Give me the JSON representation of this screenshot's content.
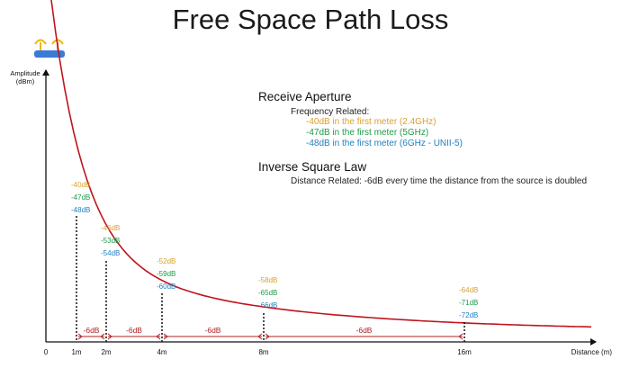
{
  "colors": {
    "curve": "#c0141c",
    "band_2_4ghz": "#d9a030",
    "band_5ghz": "#1e9a4a",
    "band_6ghz": "#1f7fbf",
    "step_label": "#b02020",
    "axis": "#111111",
    "router": "#3a7bd5",
    "antenna": "#f0b400"
  },
  "header": {
    "title": "Free Space Path Loss"
  },
  "icons": {
    "router": "router-icon"
  },
  "annotations": {
    "receive_aperture": {
      "heading": "Receive Aperture",
      "sub": "Frequency Related:",
      "lines": [
        "-40dB in the first meter (2.4GHz)",
        "-47dB in the first meter (5GHz)",
        "-48dB in the first meter (6GHz - UNII-5)"
      ]
    },
    "inverse_square": {
      "heading": "Inverse Square Law",
      "sub": "Distance Related: -6dB every time the distance from the source is doubled"
    }
  },
  "chart_data": {
    "type": "line",
    "title": "Free Space Path Loss",
    "xlabel": "Distance (m)",
    "ylabel": "Amplitude (dBm)",
    "ylabel_lines": [
      "Amplitude",
      "(dBm)"
    ],
    "x_ticks": [
      {
        "value": 0,
        "label": "0"
      },
      {
        "value": 1,
        "label": "1m"
      },
      {
        "value": 2,
        "label": "2m"
      },
      {
        "value": 4,
        "label": "4m"
      },
      {
        "value": 8,
        "label": "8m"
      },
      {
        "value": 16,
        "label": "16m"
      }
    ],
    "series": [
      {
        "name": "2.4GHz",
        "x": [
          1,
          2,
          4,
          8,
          16
        ],
        "labels": [
          "-40dB",
          "-46dB",
          "-52dB",
          "-58dB",
          "-64dB"
        ]
      },
      {
        "name": "5GHz",
        "x": [
          1,
          2,
          4,
          8,
          16
        ],
        "labels": [
          "-47dB",
          "-53dB",
          "-59dB",
          "-65dB",
          "-71dB"
        ]
      },
      {
        "name": "6GHz",
        "x": [
          1,
          2,
          4,
          8,
          16
        ],
        "labels": [
          "-48dB",
          "-54dB",
          "-60dB",
          "-66dB",
          "-72dB"
        ]
      }
    ],
    "step_labels": [
      {
        "from": 1,
        "to": 2,
        "label": "-6dB"
      },
      {
        "from": 2,
        "to": 4,
        "label": "-6dB"
      },
      {
        "from": 4,
        "to": 8,
        "label": "-6dB"
      },
      {
        "from": 8,
        "to": 16,
        "label": "-6dB"
      }
    ],
    "grid": false,
    "legend": "none"
  }
}
